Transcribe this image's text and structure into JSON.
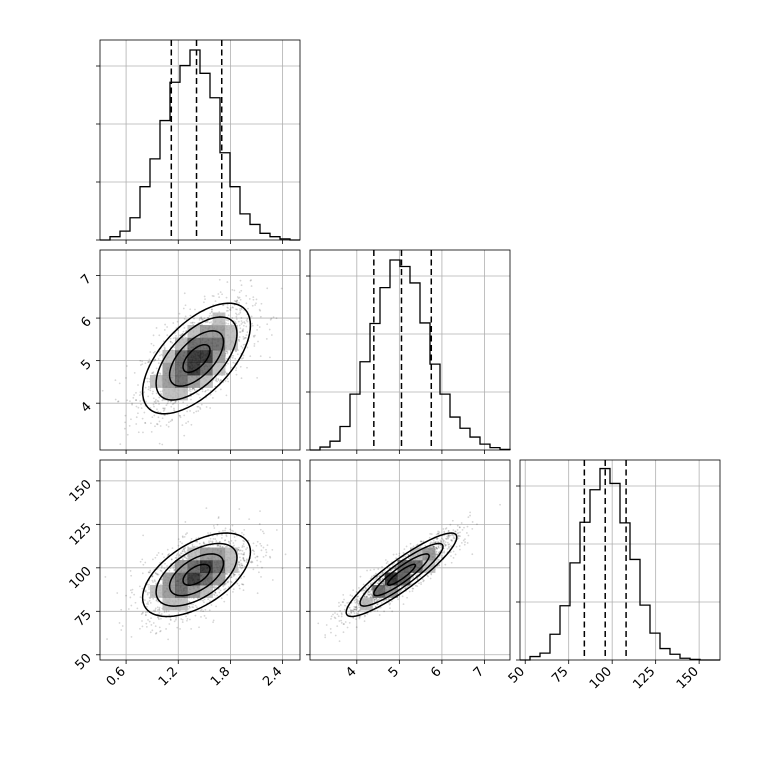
{
  "chart_data": {
    "type": "corner",
    "grid": true,
    "params": [
      {
        "xlim": [
          0.3,
          2.6
        ],
        "ticks": [
          0.6,
          1.2,
          1.8,
          2.4
        ],
        "tick_labels": [
          "0.6",
          "1.2",
          "1.8",
          "2.4"
        ]
      },
      {
        "xlim": [
          2.9,
          7.6
        ],
        "ticks": [
          4,
          5,
          6,
          7
        ],
        "tick_labels": [
          "4",
          "5",
          "6",
          "7"
        ]
      },
      {
        "xlim": [
          47,
          162
        ],
        "ticks": [
          50,
          75,
          100,
          125,
          150
        ],
        "tick_labels": [
          "50",
          "75",
          "100",
          "125",
          "150"
        ]
      }
    ],
    "diagonals": [
      {
        "param": 0,
        "bin_edges": [
          0.3,
          0.415,
          0.53,
          0.645,
          0.76,
          0.875,
          0.99,
          1.105,
          1.22,
          1.335,
          1.45,
          1.565,
          1.68,
          1.795,
          1.91,
          2.025,
          2.14,
          2.255,
          2.37,
          2.485,
          2.6
        ],
        "counts": [
          0,
          6,
          16,
          40,
          96,
          146,
          215,
          284,
          314,
          342,
          300,
          256,
          157,
          96,
          47,
          28,
          12,
          6,
          2,
          0
        ],
        "ymax": 360,
        "quantiles": [
          1.12,
          1.41,
          1.7
        ]
      },
      {
        "param": 1,
        "bin_edges": [
          2.9,
          3.135,
          3.37,
          3.605,
          3.84,
          4.075,
          4.31,
          4.545,
          4.78,
          5.015,
          5.25,
          5.485,
          5.72,
          5.955,
          6.19,
          6.425,
          6.66,
          6.895,
          7.13,
          7.365,
          7.6
        ],
        "counts": [
          0,
          5,
          15,
          40,
          95,
          150,
          215,
          276,
          323,
          312,
          284,
          216,
          146,
          95,
          56,
          37,
          22,
          10,
          4,
          1
        ],
        "ymax": 340,
        "quantiles": [
          4.4,
          5.05,
          5.75
        ]
      },
      {
        "param": 2,
        "bin_edges": [
          47,
          52.75,
          58.5,
          64.25,
          70,
          75.75,
          81.5,
          87.25,
          93,
          98.75,
          104.5,
          110.25,
          116,
          121.75,
          127.5,
          133.25,
          139,
          144.75,
          150.5,
          156.25,
          162
        ],
        "counts": [
          0,
          6,
          12,
          45,
          95,
          170,
          241,
          298,
          335,
          309,
          240,
          176,
          96,
          47,
          20,
          10,
          3,
          1,
          0,
          0
        ],
        "ymax": 350,
        "quantiles": [
          84,
          96,
          108
        ]
      }
    ],
    "pairs": [
      {
        "x_param": 0,
        "y_param": 1,
        "center": [
          1.41,
          5.05
        ],
        "sd": [
          0.31,
          0.65
        ],
        "corr": 0.6,
        "n_points": 1600
      },
      {
        "x_param": 0,
        "y_param": 2,
        "center": [
          1.41,
          96
        ],
        "sd": [
          0.31,
          12
        ],
        "corr": 0.55,
        "n_points": 1600
      },
      {
        "x_param": 1,
        "y_param": 2,
        "center": [
          5.05,
          96
        ],
        "sd": [
          0.65,
          12
        ],
        "corr": 0.9,
        "n_points": 1600
      }
    ],
    "contour_levels": [
      0.5,
      1.0,
      1.5,
      2.0
    ]
  }
}
